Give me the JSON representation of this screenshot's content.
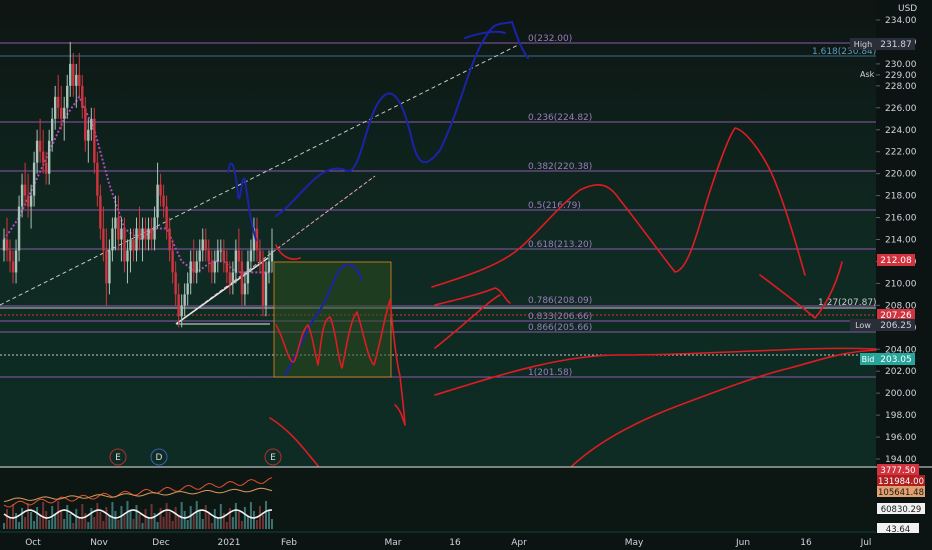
{
  "currency": "USD",
  "colors": {
    "background": "#0d1f19",
    "fib": "#8a5aa8",
    "candle_up": "#a8c4b8",
    "candle_down": "#d2343f",
    "ma_dotted": "#b04ab8",
    "drawing_red": "#e11b22",
    "drawing_blue": "#1c23a8",
    "trendline": "#e6e6e6",
    "box_fill": "#2c4a1e",
    "box_stroke": "#e08a1c"
  },
  "labels": {
    "high": "High",
    "low": "Low",
    "ask": "Ask",
    "bid": "Bid",
    "high_value": "231.87",
    "low_value": "206.25",
    "bid_value": "203.05",
    "price_red": "207.26",
    "price_last": "212.08",
    "event_e1": "E",
    "event_d": "D",
    "event_e2": "E"
  },
  "chart_data": {
    "type": "line",
    "price_axis": {
      "ylim": [
        193.5,
        235.5
      ],
      "ticks": [
        "234.00",
        "232.00",
        "230.00",
        "229.00",
        "228.00",
        "226.00",
        "224.00",
        "222.00",
        "220.00",
        "218.00",
        "216.00",
        "214.00",
        "212.00",
        "210.00",
        "208.00",
        "206.00",
        "204.00",
        "202.00",
        "200.00",
        "198.00",
        "196.00",
        "194.00"
      ]
    },
    "time_axis": {
      "ticks": [
        "Oct",
        "Nov",
        "Dec",
        "2021",
        "Feb",
        "Mar",
        "16",
        "Apr",
        "May",
        "Jun",
        "16",
        "Jul"
      ]
    },
    "fib_levels": [
      {
        "label": "0(232.00)",
        "value": 232.0
      },
      {
        "label": "1.618(230.84)",
        "value": 230.84
      },
      {
        "label": "0.236(224.82)",
        "value": 224.82
      },
      {
        "label": "0.382(220.38)",
        "value": 220.38
      },
      {
        "label": "0.5(216.79)",
        "value": 216.79
      },
      {
        "label": "0.618(213.20)",
        "value": 213.2
      },
      {
        "label": "0.786(208.09)",
        "value": 208.09
      },
      {
        "label": "1.27(207.87)",
        "value": 207.87
      },
      {
        "label": "0.833(206.66)",
        "value": 206.66
      },
      {
        "label": "0.866(205.66)",
        "value": 205.66
      },
      {
        "label": "1(201.58)",
        "value": 201.58
      }
    ],
    "candles": [
      [
        "Sep 14",
        213,
        215,
        212,
        214
      ],
      [
        "Sep 15",
        214,
        216,
        212,
        213
      ],
      [
        "Sep 16",
        213,
        214,
        211,
        212
      ],
      [
        "Sep 17",
        212,
        213,
        210,
        211
      ],
      [
        "Sep 18",
        211,
        214,
        210,
        213
      ],
      [
        "Sep 21",
        213,
        218,
        212,
        217
      ],
      [
        "Sep 22",
        217,
        220,
        216,
        219
      ],
      [
        "Sep 23",
        219,
        221,
        217,
        218
      ],
      [
        "Sep 24",
        218,
        220,
        216,
        217
      ],
      [
        "Sep 25",
        217,
        219,
        215,
        218
      ],
      [
        "Sep 28",
        218,
        222,
        217,
        221
      ],
      [
        "Sep 29",
        221,
        224,
        220,
        223
      ],
      [
        "Sep 30",
        223,
        225,
        221,
        222
      ],
      [
        "Oct 1",
        222,
        224,
        220,
        221
      ],
      [
        "Oct 2",
        221,
        222,
        219,
        220
      ],
      [
        "Oct 5",
        220,
        224,
        219,
        223
      ],
      [
        "Oct 6",
        223,
        226,
        222,
        225
      ],
      [
        "Oct 7",
        225,
        228,
        224,
        227
      ],
      [
        "Oct 8",
        227,
        229,
        225,
        226
      ],
      [
        "Oct 9",
        226,
        228,
        224,
        225
      ],
      [
        "Oct 12",
        225,
        227,
        223,
        226
      ],
      [
        "Oct 13",
        226,
        229,
        225,
        228
      ],
      [
        "Oct 14",
        228,
        232,
        227,
        230
      ],
      [
        "Oct 15",
        230,
        231,
        227,
        228
      ],
      [
        "Oct 16",
        228,
        230,
        226,
        229
      ],
      [
        "Oct 19",
        229,
        231,
        227,
        228
      ],
      [
        "Oct 20",
        228,
        229,
        225,
        226
      ],
      [
        "Oct 21",
        226,
        227,
        222,
        223
      ],
      [
        "Oct 22",
        223,
        225,
        221,
        224
      ],
      [
        "Oct 23",
        224,
        226,
        223,
        225
      ],
      [
        "Oct 26",
        225,
        226,
        220,
        221
      ],
      [
        "Oct 27",
        221,
        222,
        217,
        218
      ],
      [
        "Oct 28",
        218,
        219,
        214,
        215
      ],
      [
        "Oct 29",
        215,
        217,
        212,
        213
      ],
      [
        "Oct 30",
        213,
        215,
        208,
        210
      ],
      [
        "Nov 2",
        210,
        214,
        209,
        213
      ],
      [
        "Nov 3",
        213,
        216,
        212,
        215
      ],
      [
        "Nov 4",
        215,
        218,
        213,
        216
      ],
      [
        "Nov 5",
        216,
        218,
        213,
        214
      ],
      [
        "Nov 6",
        214,
        216,
        212,
        215
      ],
      [
        "Nov 9",
        215,
        216,
        211,
        212
      ],
      [
        "Nov 10",
        212,
        214,
        210,
        213
      ],
      [
        "Nov 11",
        213,
        215,
        211,
        214
      ],
      [
        "Nov 12",
        214,
        215,
        212,
        213
      ],
      [
        "Nov 13",
        213,
        216,
        212,
        215
      ],
      [
        "Nov 16",
        215,
        217,
        213,
        214
      ],
      [
        "Nov 17",
        214,
        216,
        212,
        215
      ],
      [
        "Nov 18",
        215,
        216,
        213,
        214
      ],
      [
        "Nov 19",
        214,
        216,
        213,
        215
      ],
      [
        "Nov 20",
        215,
        216,
        213,
        214
      ],
      [
        "Nov 23",
        214,
        217,
        213,
        216
      ],
      [
        "Nov 24",
        216,
        221,
        215,
        219
      ],
      [
        "Nov 25",
        219,
        220,
        217,
        218
      ],
      [
        "Nov 27",
        218,
        219,
        216,
        217
      ],
      [
        "Nov 30",
        217,
        218,
        214,
        215
      ],
      [
        "Dec 1",
        215,
        216,
        212,
        213
      ],
      [
        "Dec 2",
        213,
        214,
        210,
        211
      ],
      [
        "Dec 3",
        211,
        212,
        208,
        209
      ],
      [
        "Dec 4",
        209,
        210,
        206,
        207
      ],
      [
        "Dec 7",
        207,
        209,
        206,
        208
      ],
      [
        "Dec 8",
        208,
        210,
        207,
        209
      ],
      [
        "Dec 9",
        209,
        211,
        208,
        210
      ],
      [
        "Dec 10",
        210,
        213,
        209,
        212
      ],
      [
        "Dec 11",
        212,
        214,
        210,
        211
      ],
      [
        "Dec 14",
        211,
        213,
        210,
        212
      ],
      [
        "Dec 15",
        212,
        214,
        211,
        213
      ],
      [
        "Dec 16",
        213,
        215,
        212,
        214
      ],
      [
        "Dec 17",
        214,
        215,
        212,
        213
      ],
      [
        "Dec 18",
        213,
        214,
        211,
        212
      ],
      [
        "Dec 21",
        212,
        213,
        210,
        211
      ],
      [
        "Dec 22",
        211,
        213,
        210,
        212
      ],
      [
        "Dec 23",
        212,
        214,
        211,
        213
      ],
      [
        "Dec 24",
        213,
        214,
        212,
        213
      ],
      [
        "Dec 28",
        213,
        214,
        211,
        212
      ],
      [
        "Dec 29",
        212,
        213,
        210,
        211
      ],
      [
        "Dec 30",
        211,
        212,
        209,
        210
      ],
      [
        "Dec 31",
        210,
        212,
        209,
        211
      ],
      [
        "Jan 4",
        211,
        214,
        210,
        213
      ],
      [
        "Jan 5",
        213,
        215,
        211,
        212
      ],
      [
        "Jan 6",
        212,
        213,
        208,
        209
      ],
      [
        "Jan 7",
        209,
        211,
        208,
        210
      ],
      [
        "Jan 8",
        210,
        213,
        209,
        212
      ],
      [
        "Jan 11",
        212,
        214,
        211,
        213
      ],
      [
        "Jan 12",
        213,
        216,
        212,
        215
      ],
      [
        "Jan 13",
        215,
        216,
        212,
        213
      ],
      [
        "Jan 14",
        213,
        214,
        211,
        212
      ],
      [
        "Jan 15",
        212,
        213,
        207,
        208
      ],
      [
        "Jan 19",
        208,
        212,
        207,
        211
      ],
      [
        "Jan 20",
        211,
        213,
        210,
        212
      ],
      [
        "Jan 21",
        212,
        215,
        211,
        213
      ]
    ],
    "candles_fields": [
      "date",
      "open",
      "high",
      "low",
      "close"
    ],
    "moving_average": [
      [
        "Sep 14",
        214
      ],
      [
        "Sep 21",
        216
      ],
      [
        "Sep 28",
        219
      ],
      [
        "Oct 5",
        222
      ],
      [
        "Oct 12",
        225
      ],
      [
        "Oct 19",
        227
      ],
      [
        "Oct 26",
        224
      ],
      [
        "Nov 2",
        219
      ],
      [
        "Nov 9",
        215
      ],
      [
        "Nov 16",
        214
      ],
      [
        "Nov 23",
        215
      ],
      [
        "Nov 30",
        215
      ],
      [
        "Dec 7",
        212
      ],
      [
        "Dec 14",
        211
      ],
      [
        "Dec 21",
        212
      ],
      [
        "Dec 28",
        212
      ],
      [
        "Jan 4",
        211
      ],
      [
        "Jan 11",
        211
      ],
      [
        "Jan 21",
        211
      ]
    ],
    "indicator_panel": {
      "labels": [
        "3777.50",
        "131984.00",
        "105641.48",
        "60830.29",
        "43.64"
      ]
    }
  }
}
